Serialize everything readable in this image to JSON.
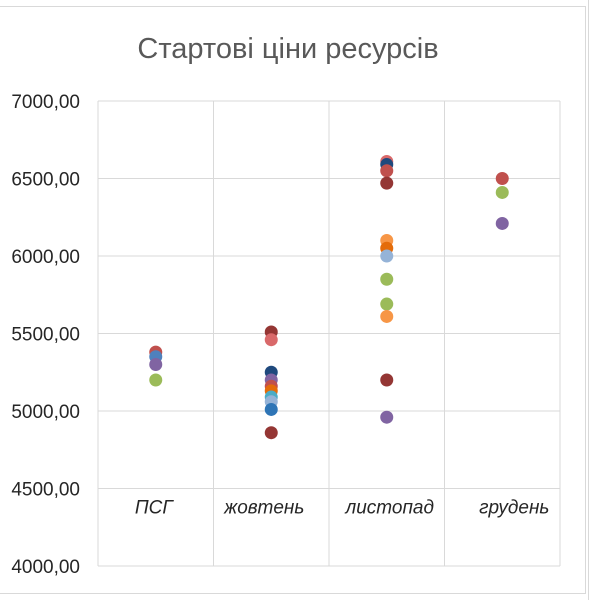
{
  "chart_data": {
    "type": "scatter",
    "title": "Стартові ціни ресурсів",
    "xlabel": "",
    "ylabel": "",
    "ylim": [
      4000,
      7000
    ],
    "y_ticks": [
      "4000,00",
      "4500,00",
      "5000,00",
      "5500,00",
      "6000,00",
      "6500,00",
      "7000,00"
    ],
    "y_tick_values": [
      4000,
      4500,
      5000,
      5500,
      6000,
      6500,
      7000
    ],
    "categories": [
      "ПСГ",
      "жовтень",
      "листопад",
      "грудень"
    ],
    "category_labels_position_value": 4500,
    "grid": true,
    "legend": "none",
    "points": [
      {
        "category": 0,
        "y": 5380,
        "color": "#c0504d"
      },
      {
        "category": 0,
        "y": 5350,
        "color": "#4f81bd"
      },
      {
        "category": 0,
        "y": 5300,
        "color": "#8064a2"
      },
      {
        "category": 0,
        "y": 5200,
        "color": "#9bbb59"
      },
      {
        "category": 1,
        "y": 5510,
        "color": "#943634"
      },
      {
        "category": 1,
        "y": 5460,
        "color": "#d9696a"
      },
      {
        "category": 1,
        "y": 5250,
        "color": "#1f497d"
      },
      {
        "category": 1,
        "y": 5200,
        "color": "#8064a2"
      },
      {
        "category": 1,
        "y": 5160,
        "color": "#c0504d"
      },
      {
        "category": 1,
        "y": 5130,
        "color": "#e46c0a"
      },
      {
        "category": 1,
        "y": 5090,
        "color": "#4bacc6"
      },
      {
        "category": 1,
        "y": 5060,
        "color": "#95b3d7"
      },
      {
        "category": 1,
        "y": 5010,
        "color": "#2e75b6"
      },
      {
        "category": 1,
        "y": 4860,
        "color": "#943634"
      },
      {
        "category": 2,
        "y": 6610,
        "color": "#d9696a"
      },
      {
        "category": 2,
        "y": 6590,
        "color": "#1f497d"
      },
      {
        "category": 2,
        "y": 6550,
        "color": "#c0504d"
      },
      {
        "category": 2,
        "y": 6470,
        "color": "#943634"
      },
      {
        "category": 2,
        "y": 6100,
        "color": "#f79646"
      },
      {
        "category": 2,
        "y": 6050,
        "color": "#e46c0a"
      },
      {
        "category": 2,
        "y": 6000,
        "color": "#95b3d7"
      },
      {
        "category": 2,
        "y": 5850,
        "color": "#9bbb59"
      },
      {
        "category": 2,
        "y": 5690,
        "color": "#9bbb59"
      },
      {
        "category": 2,
        "y": 5610,
        "color": "#f79646"
      },
      {
        "category": 2,
        "y": 5200,
        "color": "#943634"
      },
      {
        "category": 2,
        "y": 4960,
        "color": "#8064a2"
      },
      {
        "category": 3,
        "y": 6500,
        "color": "#c0504d"
      },
      {
        "category": 3,
        "y": 6410,
        "color": "#9bbb59"
      },
      {
        "category": 3,
        "y": 6210,
        "color": "#8064a2"
      }
    ]
  },
  "colors": {
    "grid": "#d9d9d9",
    "title": "#595959",
    "text": "#262626"
  }
}
